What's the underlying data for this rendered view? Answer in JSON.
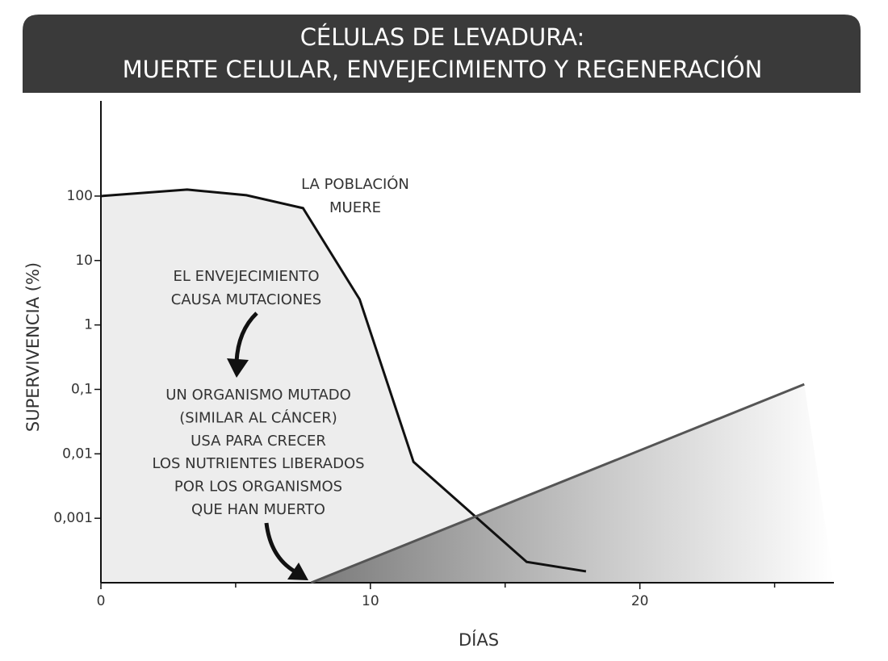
{
  "chart_data": {
    "type": "line",
    "title_lines": [
      "CÉLULAS DE LEVADURA:",
      "MUERTE CELULAR, ENVEJECIMIENTO Y REGENERACIÓN"
    ],
    "x_label": "DÍAS",
    "y_label": "SUPERVIVENCIA (%)",
    "y_log": true,
    "xlim": [
      0,
      27.2
    ],
    "ylim": [
      0.0001,
      3000
    ],
    "xticks": [
      0,
      10,
      20
    ],
    "xticks_minor": [
      5,
      15,
      25
    ],
    "yticks": [
      100,
      10,
      1,
      {
        "value": 0.1,
        "label": "0,1"
      },
      {
        "value": 0.01,
        "label": "0,01"
      },
      {
        "value": 0.001,
        "label": "0,001"
      }
    ],
    "series": [
      {
        "color": "#111111",
        "x": [
          0,
          3.2,
          5.4,
          7.5,
          9.6,
          11.6,
          15.8,
          18
        ],
        "values": [
          100,
          126,
          103,
          65,
          2.5,
          0.0075,
          0.00021,
          0.00015
        ]
      },
      {
        "color": "#555555",
        "x": [
          7.8,
          26.1
        ],
        "values": [
          0.0001,
          0.12
        ]
      }
    ],
    "annotations": [
      {
        "lines": [
          "LA POBLACIÓN",
          "MUERE"
        ]
      },
      {
        "lines": [
          "EL ENVEJECIMIENTO",
          "CAUSA MUTACIONES"
        ]
      },
      {
        "lines": [
          "UN ORGANISMO MUTADO",
          "(SIMILAR AL CÁNCER)",
          "USA PARA CRECER",
          "LOS NUTRIENTES LIBERADOS",
          "POR LOS ORGANISMOS",
          "QUE HAN MUERTO"
        ]
      }
    ]
  }
}
